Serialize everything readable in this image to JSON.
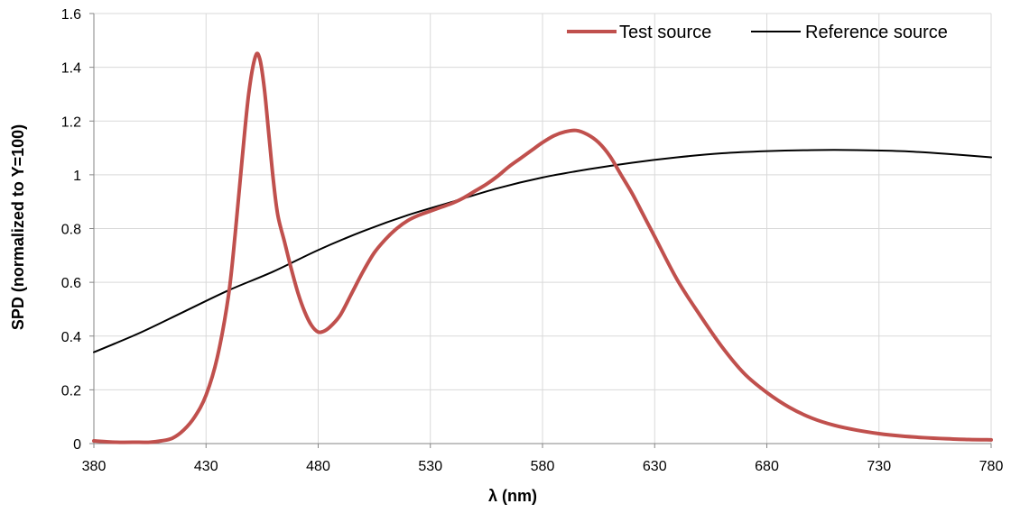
{
  "chart_data": {
    "type": "line",
    "title": "",
    "xlabel": "λ (nm)",
    "ylabel": "SPD (normalized to Y=100)",
    "xlim": [
      380,
      780
    ],
    "ylim": [
      0,
      1.6
    ],
    "x_ticks": [
      "380",
      "430",
      "480",
      "530",
      "580",
      "630",
      "680",
      "730",
      "780"
    ],
    "y_ticks": [
      "0",
      "0.2",
      "0.4",
      "0.6",
      "0.8",
      "1",
      "1.2",
      "1.4",
      "1.6"
    ],
    "grid": true,
    "legend_position": "top-right",
    "series": [
      {
        "name": "Test source",
        "color": "#c0504d",
        "line_width": "thick",
        "x": [
          380,
          390,
          400,
          405,
          410,
          415,
          420,
          425,
          430,
          435,
          440,
          443,
          446,
          449,
          452,
          454,
          456,
          458,
          460,
          462,
          465,
          468,
          471,
          474,
          477,
          480,
          483,
          486,
          490,
          495,
          500,
          505,
          510,
          515,
          520,
          525,
          530,
          535,
          540,
          545,
          550,
          555,
          560,
          565,
          570,
          575,
          580,
          585,
          590,
          595,
          600,
          605,
          610,
          615,
          620,
          625,
          630,
          640,
          650,
          660,
          670,
          680,
          690,
          700,
          710,
          720,
          730,
          740,
          750,
          760,
          770,
          780
        ],
        "y": [
          0.01,
          0.005,
          0.005,
          0.005,
          0.01,
          0.02,
          0.05,
          0.1,
          0.18,
          0.32,
          0.55,
          0.78,
          1.05,
          1.3,
          1.44,
          1.43,
          1.32,
          1.15,
          0.98,
          0.85,
          0.75,
          0.65,
          0.56,
          0.49,
          0.44,
          0.415,
          0.42,
          0.44,
          0.48,
          0.56,
          0.64,
          0.71,
          0.76,
          0.8,
          0.83,
          0.85,
          0.865,
          0.88,
          0.895,
          0.915,
          0.94,
          0.965,
          0.995,
          1.03,
          1.06,
          1.09,
          1.12,
          1.145,
          1.16,
          1.165,
          1.15,
          1.12,
          1.07,
          1.0,
          0.93,
          0.85,
          0.77,
          0.61,
          0.48,
          0.36,
          0.26,
          0.19,
          0.135,
          0.095,
          0.068,
          0.05,
          0.037,
          0.028,
          0.022,
          0.018,
          0.015,
          0.014
        ]
      },
      {
        "name": "Reference source",
        "color": "#000000",
        "line_width": "thin",
        "x": [
          380,
          400,
          420,
          440,
          460,
          480,
          500,
          520,
          540,
          560,
          580,
          600,
          620,
          640,
          660,
          680,
          700,
          720,
          740,
          760,
          780
        ],
        "y": [
          0.34,
          0.41,
          0.49,
          0.57,
          0.64,
          0.72,
          0.79,
          0.85,
          0.9,
          0.95,
          0.99,
          1.02,
          1.045,
          1.065,
          1.08,
          1.088,
          1.092,
          1.092,
          1.088,
          1.078,
          1.065
        ]
      }
    ]
  }
}
